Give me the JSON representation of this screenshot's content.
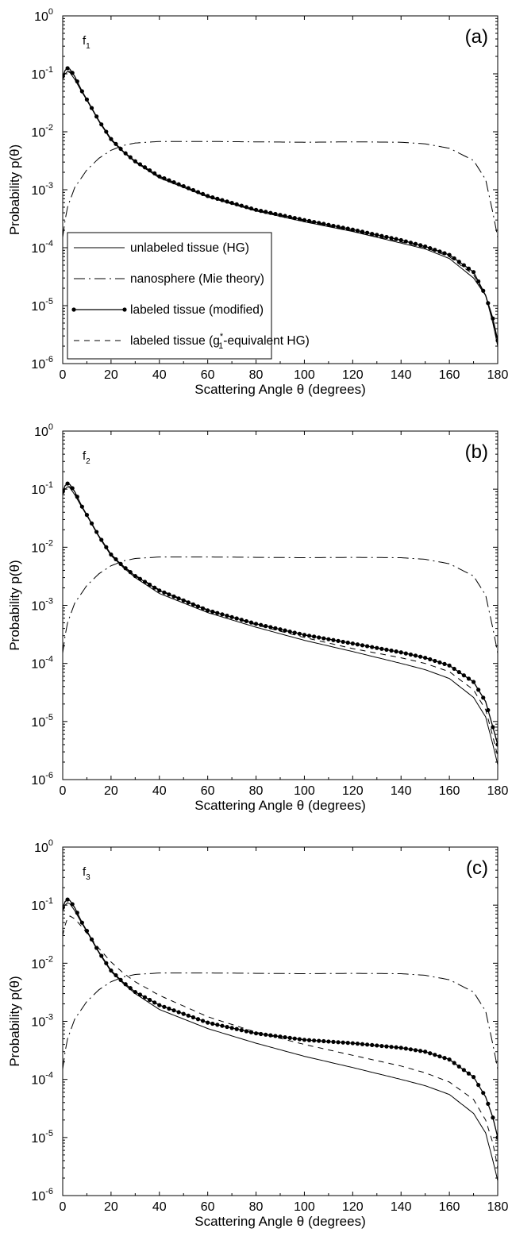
{
  "chart_data": [
    {
      "type": "line",
      "panel_label": "(a)",
      "annotation": "f",
      "annotation_sub": "1",
      "xlabel": "Scattering Angle θ (degrees)",
      "ylabel": "Probability p(θ)",
      "xlim": [
        0,
        180
      ],
      "ylim": [
        1e-06,
        1
      ],
      "yscale": "log",
      "x_ticks": [
        "0",
        "20",
        "40",
        "60",
        "80",
        "100",
        "120",
        "140",
        "160",
        "180"
      ],
      "y_ticks": [
        {
          "base": "10",
          "exp": "-6"
        },
        {
          "base": "10",
          "exp": "-5"
        },
        {
          "base": "10",
          "exp": "-4"
        },
        {
          "base": "10",
          "exp": "-3"
        },
        {
          "base": "10",
          "exp": "-2"
        },
        {
          "base": "10",
          "exp": "-1"
        },
        {
          "base": "10",
          "exp": "0"
        }
      ],
      "grid": false,
      "legend": {
        "placement": "lower-left",
        "entries": [
          {
            "text": "unlabeled tissue (HG)",
            "style": "solid"
          },
          {
            "text": "nanosphere (Mie theory)",
            "style": "dashdot"
          },
          {
            "text": "labeled tissue (modified)",
            "style": "solid-dots"
          },
          {
            "text_pre": "labeled tissue (g",
            "text_sup": "*",
            "text_sub": "1",
            "text_post": "-equivalent HG)",
            "style": "dashed"
          }
        ]
      },
      "series": [
        {
          "style": "solid",
          "x": [
            0,
            1,
            2,
            3,
            5,
            8,
            10,
            15,
            20,
            25,
            30,
            40,
            60,
            80,
            100,
            120,
            140,
            150,
            160,
            170,
            175,
            178,
            180
          ],
          "y": [
            0.08,
            0.1,
            0.11,
            0.105,
            0.08,
            0.048,
            0.035,
            0.015,
            0.0072,
            0.0045,
            0.003,
            0.0016,
            0.00075,
            0.00043,
            0.00028,
            0.00019,
            0.00012,
            9.5e-05,
            6.5e-05,
            3e-05,
            1.5e-05,
            5e-06,
            2e-06
          ]
        },
        {
          "style": "dashdot",
          "x": [
            0,
            1,
            2,
            5,
            10,
            15,
            20,
            25,
            30,
            40,
            60,
            80,
            100,
            120,
            140,
            150,
            160,
            170,
            175,
            178,
            180
          ],
          "y": [
            0.00015,
            0.0003,
            0.0005,
            0.0011,
            0.0022,
            0.0035,
            0.0048,
            0.0058,
            0.0064,
            0.0068,
            0.0068,
            0.0067,
            0.0066,
            0.0067,
            0.0066,
            0.0062,
            0.0052,
            0.0032,
            0.0015,
            0.0004,
            0.00015
          ]
        },
        {
          "style": "solid-dots",
          "x": [
            0,
            1,
            2,
            3,
            5,
            8,
            10,
            15,
            20,
            25,
            30,
            40,
            60,
            80,
            100,
            120,
            140,
            150,
            160,
            170,
            175,
            178,
            180
          ],
          "y": [
            0.09,
            0.115,
            0.125,
            0.12,
            0.09,
            0.05,
            0.036,
            0.0155,
            0.0075,
            0.0046,
            0.0031,
            0.0017,
            0.00078,
            0.00045,
            0.0003,
            0.000205,
            0.000135,
            0.000105,
            7.5e-05,
            3.8e-05,
            1.5e-05,
            6e-06,
            2.5e-06
          ]
        },
        {
          "style": "dashed",
          "x": [
            0,
            1,
            2,
            3,
            5,
            8,
            10,
            15,
            20,
            25,
            30,
            40,
            60,
            80,
            100,
            120,
            140,
            150,
            160,
            170,
            175,
            178,
            180
          ],
          "y": [
            0.085,
            0.105,
            0.115,
            0.11,
            0.085,
            0.049,
            0.0355,
            0.0152,
            0.0073,
            0.0045,
            0.003,
            0.00162,
            0.00076,
            0.00044,
            0.00029,
            0.000195,
            0.000125,
            0.0001,
            7e-05,
            3.4e-05,
            1.5e-05,
            5.5e-06,
            2.2e-06
          ]
        }
      ]
    },
    {
      "type": "line",
      "panel_label": "(b)",
      "annotation": "f",
      "annotation_sub": "2",
      "xlabel": "Scattering Angle θ (degrees)",
      "ylabel": "Probability p(θ)",
      "xlim": [
        0,
        180
      ],
      "ylim": [
        1e-06,
        1
      ],
      "yscale": "log",
      "x_ticks": [
        "0",
        "20",
        "40",
        "60",
        "80",
        "100",
        "120",
        "140",
        "160",
        "180"
      ],
      "y_ticks": [
        {
          "base": "10",
          "exp": "-6"
        },
        {
          "base": "10",
          "exp": "-5"
        },
        {
          "base": "10",
          "exp": "-4"
        },
        {
          "base": "10",
          "exp": "-3"
        },
        {
          "base": "10",
          "exp": "-2"
        },
        {
          "base": "10",
          "exp": "-1"
        },
        {
          "base": "10",
          "exp": "0"
        }
      ],
      "grid": false,
      "series": [
        {
          "style": "solid",
          "x": [
            0,
            1,
            2,
            3,
            5,
            8,
            10,
            15,
            20,
            25,
            30,
            40,
            60,
            80,
            100,
            120,
            140,
            150,
            160,
            170,
            175,
            178,
            180
          ],
          "y": [
            0.08,
            0.1,
            0.11,
            0.105,
            0.08,
            0.048,
            0.035,
            0.015,
            0.0072,
            0.0045,
            0.003,
            0.0016,
            0.00075,
            0.00042,
            0.00025,
            0.00016,
            0.0001,
            7.8e-05,
            5.5e-05,
            2.6e-05,
            1.2e-05,
            4e-06,
            1.8e-06
          ]
        },
        {
          "style": "dashdot",
          "x": [
            0,
            1,
            2,
            5,
            10,
            15,
            20,
            25,
            30,
            40,
            60,
            80,
            100,
            120,
            140,
            150,
            160,
            170,
            175,
            178,
            180
          ],
          "y": [
            0.00015,
            0.0003,
            0.0005,
            0.0011,
            0.0022,
            0.0035,
            0.0048,
            0.0058,
            0.0064,
            0.0068,
            0.0068,
            0.0067,
            0.0066,
            0.0067,
            0.0066,
            0.0062,
            0.0052,
            0.0032,
            0.0015,
            0.0004,
            0.00015
          ]
        },
        {
          "style": "solid-dots",
          "x": [
            0,
            1,
            2,
            3,
            5,
            8,
            10,
            15,
            20,
            25,
            30,
            40,
            60,
            80,
            100,
            120,
            140,
            150,
            160,
            170,
            175,
            178,
            180
          ],
          "y": [
            0.09,
            0.115,
            0.125,
            0.12,
            0.09,
            0.05,
            0.036,
            0.0155,
            0.0075,
            0.0047,
            0.0032,
            0.0018,
            0.00082,
            0.00048,
            0.00031,
            0.00022,
            0.000155,
            0.000125,
            9.2e-05,
            4.8e-05,
            2.2e-05,
            8e-06,
            4e-06
          ]
        },
        {
          "style": "dashed",
          "x": [
            0,
            1,
            2,
            3,
            5,
            8,
            10,
            15,
            20,
            25,
            30,
            40,
            60,
            80,
            100,
            120,
            140,
            150,
            160,
            170,
            175,
            178,
            180
          ],
          "y": [
            0.085,
            0.105,
            0.115,
            0.11,
            0.085,
            0.049,
            0.0355,
            0.0155,
            0.0076,
            0.0048,
            0.0033,
            0.00185,
            0.00084,
            0.00046,
            0.00028,
            0.00018,
            0.000125,
            0.0001,
            7.2e-05,
            3.5e-05,
            1.6e-05,
            5.5e-06,
            2.5e-06
          ]
        }
      ]
    },
    {
      "type": "line",
      "panel_label": "(c)",
      "annotation": "f",
      "annotation_sub": "3",
      "xlabel": "Scattering Angle θ (degrees)",
      "ylabel": "Probability p(θ)",
      "xlim": [
        0,
        180
      ],
      "ylim": [
        1e-06,
        1
      ],
      "yscale": "log",
      "x_ticks": [
        "0",
        "20",
        "40",
        "60",
        "80",
        "100",
        "120",
        "140",
        "160",
        "180"
      ],
      "y_ticks": [
        {
          "base": "10",
          "exp": "-6"
        },
        {
          "base": "10",
          "exp": "-5"
        },
        {
          "base": "10",
          "exp": "-4"
        },
        {
          "base": "10",
          "exp": "-3"
        },
        {
          "base": "10",
          "exp": "-2"
        },
        {
          "base": "10",
          "exp": "-1"
        },
        {
          "base": "10",
          "exp": "0"
        }
      ],
      "grid": false,
      "series": [
        {
          "style": "solid",
          "x": [
            0,
            1,
            2,
            3,
            5,
            8,
            10,
            15,
            20,
            25,
            30,
            40,
            60,
            80,
            100,
            120,
            140,
            150,
            160,
            170,
            175,
            178,
            180
          ],
          "y": [
            0.08,
            0.1,
            0.11,
            0.105,
            0.08,
            0.048,
            0.035,
            0.015,
            0.0072,
            0.0045,
            0.003,
            0.0016,
            0.00075,
            0.00042,
            0.00025,
            0.00016,
            0.0001,
            7.8e-05,
            5.5e-05,
            2.6e-05,
            1.2e-05,
            4e-06,
            1.8e-06
          ]
        },
        {
          "style": "dashdot",
          "x": [
            0,
            1,
            2,
            5,
            10,
            15,
            20,
            25,
            30,
            40,
            60,
            80,
            100,
            120,
            140,
            150,
            160,
            170,
            175,
            178,
            180
          ],
          "y": [
            0.00015,
            0.0003,
            0.0005,
            0.0011,
            0.0022,
            0.0035,
            0.0048,
            0.0058,
            0.0064,
            0.0068,
            0.0068,
            0.0067,
            0.0066,
            0.0067,
            0.0066,
            0.0062,
            0.0052,
            0.0032,
            0.0015,
            0.0004,
            0.00015
          ]
        },
        {
          "style": "solid-dots",
          "x": [
            0,
            1,
            2,
            3,
            5,
            8,
            10,
            15,
            20,
            25,
            30,
            40,
            60,
            80,
            100,
            120,
            140,
            150,
            160,
            170,
            175,
            178,
            180
          ],
          "y": [
            0.09,
            0.115,
            0.125,
            0.12,
            0.09,
            0.05,
            0.036,
            0.0155,
            0.0075,
            0.0047,
            0.0032,
            0.0019,
            0.00095,
            0.00062,
            0.00048,
            0.00042,
            0.00035,
            0.0003,
            0.00022,
            0.00011,
            5e-05,
            2.2e-05,
            1e-05
          ]
        },
        {
          "style": "dashed",
          "x": [
            0,
            1,
            2,
            3,
            5,
            8,
            10,
            15,
            20,
            25,
            30,
            40,
            60,
            80,
            100,
            120,
            140,
            150,
            160,
            170,
            175,
            178,
            180
          ],
          "y": [
            0.03,
            0.045,
            0.06,
            0.065,
            0.058,
            0.042,
            0.033,
            0.018,
            0.0105,
            0.0068,
            0.0048,
            0.0028,
            0.0012,
            0.00065,
            0.0004,
            0.00026,
            0.00017,
            0.00013,
            9e-05,
            4.5e-05,
            2e-05,
            8e-06,
            3e-06
          ]
        }
      ]
    }
  ]
}
